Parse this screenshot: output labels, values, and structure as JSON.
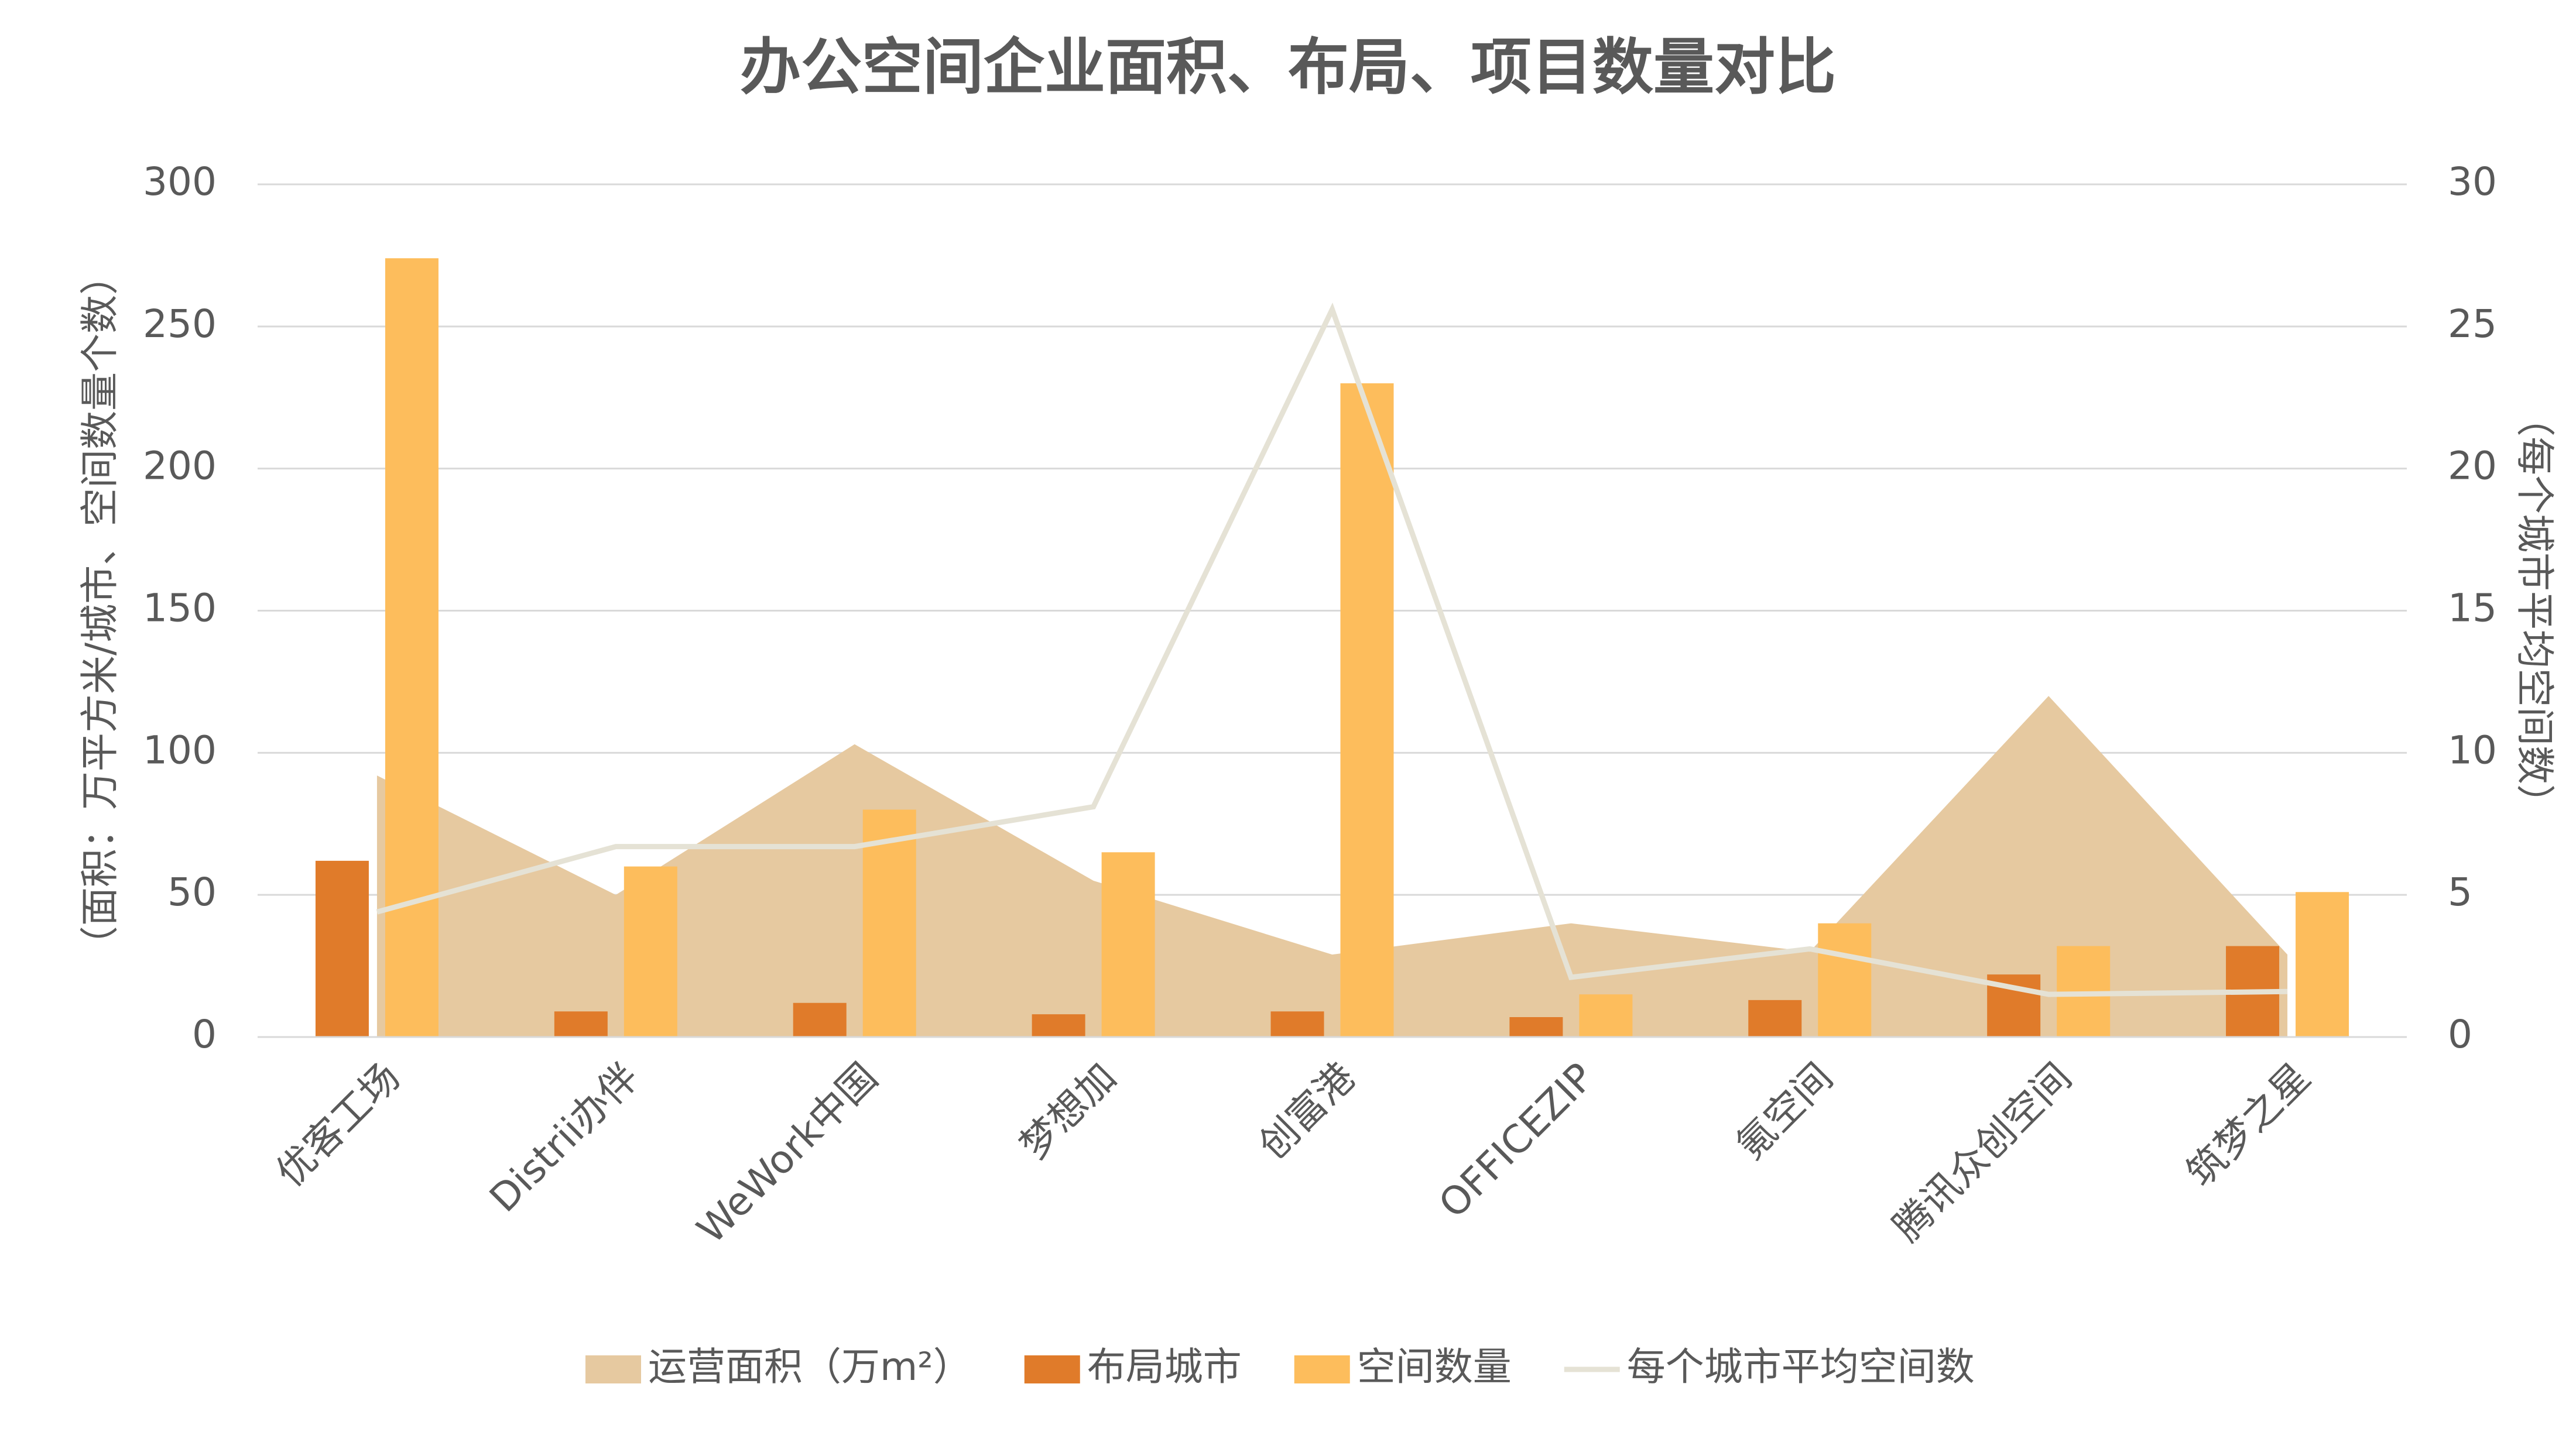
{
  "chart_data": {
    "type": "combo",
    "title": "办公空间企业面积、布局、项目数量对比",
    "y_label": "（面积：万平方米/城市、空间数量个数）",
    "y2_label": "（每个城市平均空间数）",
    "categories": [
      "优客工场",
      "Distrii办伴",
      "WeWork中国",
      "梦想加",
      "创富港",
      "OFFICEZIP",
      "氪空间",
      "腾讯众创空间",
      "筑梦之星"
    ],
    "series": [
      {
        "name": "运营面积（万m²）",
        "kind": "area",
        "color": "#e6c9a0",
        "values": [
          92,
          50,
          103,
          55,
          29,
          40,
          30,
          120,
          29
        ]
      },
      {
        "name": "布局城市",
        "kind": "bar",
        "color": "#e07b2a",
        "values": [
          62,
          9,
          12,
          8,
          9,
          7,
          13,
          22,
          32
        ]
      },
      {
        "name": "空间数量",
        "kind": "bar",
        "color": "#fdbd5c",
        "values": [
          274,
          60,
          80,
          65,
          230,
          15,
          40,
          32,
          51
        ]
      },
      {
        "name": "每个城市平均空间数",
        "kind": "line",
        "axis": "y2",
        "color": "#e5e2d5",
        "values": [
          4.4,
          6.7,
          6.7,
          8.1,
          25.6,
          2.1,
          3.1,
          1.5,
          1.6
        ]
      }
    ],
    "ylim": [
      0,
      300
    ],
    "yticks": [
      0,
      50,
      100,
      150,
      200,
      250,
      300
    ],
    "y2lim": [
      0,
      30
    ],
    "y2ticks": [
      0,
      5,
      10,
      15,
      20,
      25,
      30
    ],
    "grid": true,
    "legend": "bottom"
  }
}
